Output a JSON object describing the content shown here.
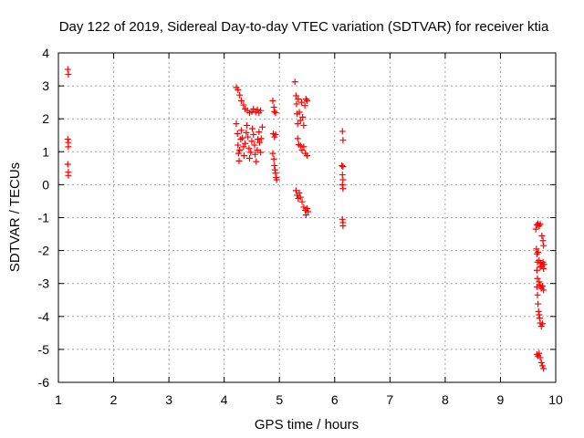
{
  "chart_data": {
    "type": "scatter",
    "title": "Day 122 of 2019, Sidereal Day-to-day VTEC variation (SDTVAR) for receiver ktia",
    "xlabel": "GPS time / hours",
    "ylabel": "SDTVAR / TECUs",
    "xlim": [
      1,
      10
    ],
    "ylim": [
      -6,
      4
    ],
    "xticks": [
      1,
      2,
      3,
      4,
      5,
      6,
      7,
      8,
      9,
      10
    ],
    "yticks": [
      -6,
      -5,
      -4,
      -3,
      -2,
      -1,
      0,
      1,
      2,
      3,
      4
    ],
    "grid": true,
    "marker": "+",
    "color": "#ff0000",
    "series": [
      {
        "name": "SDTVAR",
        "points": [
          [
            1.17,
            3.5
          ],
          [
            1.18,
            3.35
          ],
          [
            1.17,
            1.38
          ],
          [
            1.18,
            1.28
          ],
          [
            1.18,
            1.15
          ],
          [
            1.17,
            0.62
          ],
          [
            1.18,
            0.38
          ],
          [
            1.18,
            0.28
          ],
          [
            4.22,
            2.95
          ],
          [
            4.25,
            2.88
          ],
          [
            4.28,
            2.72
          ],
          [
            4.31,
            2.55
          ],
          [
            4.35,
            2.42
          ],
          [
            4.38,
            2.3
          ],
          [
            4.42,
            2.25
          ],
          [
            4.46,
            2.18
          ],
          [
            4.5,
            2.22
          ],
          [
            4.53,
            2.3
          ],
          [
            4.57,
            2.2
          ],
          [
            4.6,
            2.28
          ],
          [
            4.63,
            2.18
          ],
          [
            4.66,
            2.25
          ],
          [
            4.22,
            1.85
          ],
          [
            4.24,
            1.55
          ],
          [
            4.25,
            1.2
          ],
          [
            4.26,
            0.95
          ],
          [
            4.27,
            0.72
          ],
          [
            4.28,
            1.05
          ],
          [
            4.3,
            1.38
          ],
          [
            4.31,
            1.65
          ],
          [
            4.33,
            1.42
          ],
          [
            4.35,
            1.15
          ],
          [
            4.36,
            0.88
          ],
          [
            4.38,
            1.25
          ],
          [
            4.4,
            1.58
          ],
          [
            4.41,
            1.8
          ],
          [
            4.43,
            1.45
          ],
          [
            4.45,
            1.1
          ],
          [
            4.46,
            0.8
          ],
          [
            4.48,
            0.98
          ],
          [
            4.5,
            1.32
          ],
          [
            4.51,
            1.7
          ],
          [
            4.53,
            1.52
          ],
          [
            4.55,
            1.2
          ],
          [
            4.56,
            0.92
          ],
          [
            4.58,
            0.7
          ],
          [
            4.6,
            1.05
          ],
          [
            4.61,
            1.38
          ],
          [
            4.63,
            1.6
          ],
          [
            4.64,
            1.28
          ],
          [
            4.66,
            0.98
          ],
          [
            4.67,
            1.4
          ],
          [
            4.69,
            1.75
          ],
          [
            4.88,
            2.55
          ],
          [
            4.9,
            2.35
          ],
          [
            4.91,
            2.22
          ],
          [
            4.93,
            2.18
          ],
          [
            4.89,
            1.55
          ],
          [
            4.91,
            1.45
          ],
          [
            4.93,
            1.52
          ],
          [
            4.88,
            0.95
          ],
          [
            4.9,
            0.78
          ],
          [
            4.91,
            0.58
          ],
          [
            4.92,
            0.45
          ],
          [
            4.93,
            0.35
          ],
          [
            4.94,
            0.22
          ],
          [
            4.95,
            0.15
          ],
          [
            5.28,
            3.12
          ],
          [
            5.3,
            2.7
          ],
          [
            5.31,
            2.45
          ],
          [
            5.32,
            2.15
          ],
          [
            5.33,
            1.85
          ],
          [
            5.34,
            2.6
          ],
          [
            5.36,
            2.2
          ],
          [
            5.38,
            1.95
          ],
          [
            5.4,
            2.5
          ],
          [
            5.42,
            2.05
          ],
          [
            5.44,
            1.8
          ],
          [
            5.46,
            2.4
          ],
          [
            5.48,
            2.6
          ],
          [
            5.5,
            2.55
          ],
          [
            5.33,
            1.4
          ],
          [
            5.35,
            1.22
          ],
          [
            5.38,
            1.18
          ],
          [
            5.41,
            1.05
          ],
          [
            5.44,
            1.15
          ],
          [
            5.47,
            0.95
          ],
          [
            5.5,
            0.88
          ],
          [
            5.3,
            -0.18
          ],
          [
            5.32,
            -0.32
          ],
          [
            5.34,
            -0.42
          ],
          [
            5.36,
            -0.25
          ],
          [
            5.38,
            -0.38
          ],
          [
            5.41,
            -0.52
          ],
          [
            5.44,
            -0.68
          ],
          [
            5.47,
            -0.78
          ],
          [
            5.48,
            -0.92
          ],
          [
            5.5,
            -0.72
          ],
          [
            5.52,
            -0.82
          ],
          [
            6.14,
            1.62
          ],
          [
            6.15,
            1.35
          ],
          [
            6.13,
            0.58
          ],
          [
            6.15,
            0.55
          ],
          [
            6.14,
            0.3
          ],
          [
            6.15,
            0.15
          ],
          [
            6.14,
            0.0
          ],
          [
            6.15,
            -0.12
          ],
          [
            6.14,
            -1.05
          ],
          [
            6.15,
            -1.15
          ],
          [
            6.15,
            -1.25
          ],
          [
            9.64,
            -1.35
          ],
          [
            9.66,
            -1.22
          ],
          [
            9.68,
            -1.18
          ],
          [
            9.7,
            -1.25
          ],
          [
            9.72,
            -1.2
          ],
          [
            9.65,
            -1.95
          ],
          [
            9.66,
            -2.1
          ],
          [
            9.67,
            -2.35
          ],
          [
            9.66,
            -2.6
          ],
          [
            9.67,
            -2.85
          ],
          [
            9.66,
            -3.1
          ],
          [
            9.67,
            -3.35
          ],
          [
            9.68,
            -3.62
          ],
          [
            9.69,
            -3.85
          ],
          [
            9.7,
            -3.95
          ],
          [
            9.71,
            -4.05
          ],
          [
            9.72,
            -4.2
          ],
          [
            9.74,
            -4.3
          ],
          [
            9.76,
            -4.22
          ],
          [
            9.68,
            -2.05
          ],
          [
            9.7,
            -2.3
          ],
          [
            9.72,
            -2.5
          ],
          [
            9.73,
            -2.38
          ],
          [
            9.75,
            -2.45
          ],
          [
            9.77,
            -2.35
          ],
          [
            9.78,
            -2.55
          ],
          [
            9.79,
            -2.42
          ],
          [
            9.7,
            -2.95
          ],
          [
            9.72,
            -3.05
          ],
          [
            9.74,
            -3.15
          ],
          [
            9.76,
            -3.08
          ],
          [
            9.78,
            -3.2
          ],
          [
            9.75,
            -1.55
          ],
          [
            9.77,
            -1.7
          ],
          [
            9.78,
            -1.85
          ],
          [
            9.66,
            -5.15
          ],
          [
            9.68,
            -5.2
          ],
          [
            9.7,
            -5.12
          ],
          [
            9.72,
            -5.25
          ],
          [
            9.74,
            -5.4
          ],
          [
            9.76,
            -5.5
          ],
          [
            9.78,
            -5.58
          ]
        ]
      }
    ]
  }
}
